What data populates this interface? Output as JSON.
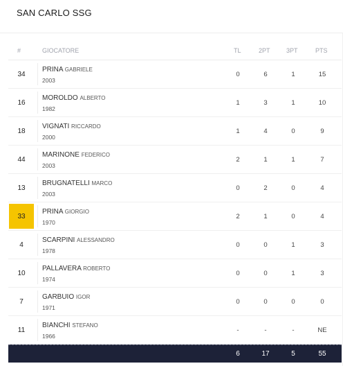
{
  "team": {
    "name": "SAN CARLO SSG"
  },
  "headers": {
    "num": "#",
    "player": "GIOCATORE",
    "tl": "TL",
    "p2": "2PT",
    "p3": "3PT",
    "pts": "PTS"
  },
  "players": [
    {
      "num": "34",
      "last": "PRINA",
      "first": "GABRIELE",
      "year": "2003",
      "tl": "0",
      "p2": "6",
      "p3": "1",
      "pts": "15",
      "highlight": false
    },
    {
      "num": "16",
      "last": "MOROLDO",
      "first": "ALBERTO",
      "year": "1982",
      "tl": "1",
      "p2": "3",
      "p3": "1",
      "pts": "10",
      "highlight": false
    },
    {
      "num": "18",
      "last": "VIGNATI",
      "first": "RICCARDO",
      "year": "2000",
      "tl": "1",
      "p2": "4",
      "p3": "0",
      "pts": "9",
      "highlight": false
    },
    {
      "num": "44",
      "last": "MARINONE",
      "first": "FEDERICO",
      "year": "2003",
      "tl": "2",
      "p2": "1",
      "p3": "1",
      "pts": "7",
      "highlight": false
    },
    {
      "num": "13",
      "last": "BRUGNATELLI",
      "first": "MARCO",
      "year": "2003",
      "tl": "0",
      "p2": "2",
      "p3": "0",
      "pts": "4",
      "highlight": false
    },
    {
      "num": "33",
      "last": "PRINA",
      "first": "GIORGIO",
      "year": "1970",
      "tl": "2",
      "p2": "1",
      "p3": "0",
      "pts": "4",
      "highlight": true
    },
    {
      "num": "4",
      "last": "SCARPINI",
      "first": "ALESSANDRO",
      "year": "1978",
      "tl": "0",
      "p2": "0",
      "p3": "1",
      "pts": "3",
      "highlight": false
    },
    {
      "num": "10",
      "last": "PALLAVERA",
      "first": "ROBERTO",
      "year": "1974",
      "tl": "0",
      "p2": "0",
      "p3": "1",
      "pts": "3",
      "highlight": false
    },
    {
      "num": "7",
      "last": "GARBUIO",
      "first": "IGOR",
      "year": "1971",
      "tl": "0",
      "p2": "0",
      "p3": "0",
      "pts": "0",
      "highlight": false
    },
    {
      "num": "11",
      "last": "BIANCHI",
      "first": "STEFANO",
      "year": "1966",
      "tl": "-",
      "p2": "-",
      "p3": "-",
      "pts": "NE",
      "highlight": false
    }
  ],
  "totals": {
    "tl": "6",
    "p2": "17",
    "p3": "5",
    "pts": "55"
  },
  "colors": {
    "highlight": "#f5c400",
    "footer": "#1d2238"
  }
}
